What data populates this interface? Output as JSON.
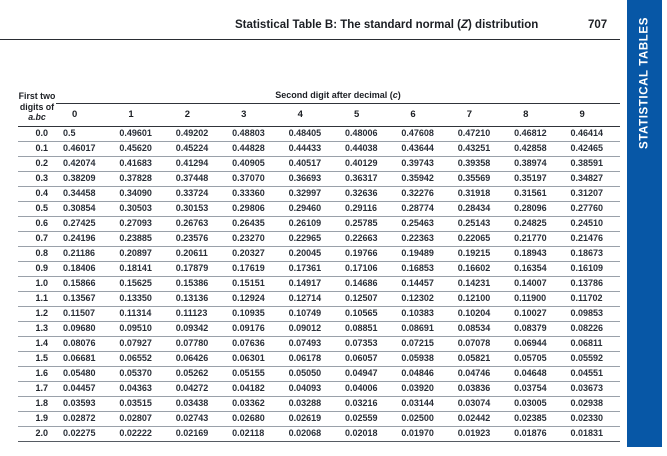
{
  "header": {
    "title_prefix": "Statistical Table B: The standard normal (",
    "title_z": "Z",
    "title_suffix": ") distribution",
    "page_number": "707"
  },
  "sidebar": {
    "label": "STATISTICAL TABLES",
    "color": "#0757a6"
  },
  "table": {
    "corner_header": {
      "line1": "First two",
      "line2": "digits of",
      "line3": "a.bc"
    },
    "span_header_prefix": "Second digit after decimal (",
    "span_header_c": "c",
    "span_header_suffix": ")",
    "col_headers": [
      "0",
      "1",
      "2",
      "3",
      "4",
      "5",
      "6",
      "7",
      "8",
      "9"
    ],
    "rows": [
      {
        "label": "0.0",
        "values": [
          "0.5",
          "0.49601",
          "0.49202",
          "0.48803",
          "0.48405",
          "0.48006",
          "0.47608",
          "0.47210",
          "0.46812",
          "0.46414"
        ]
      },
      {
        "label": "0.1",
        "values": [
          "0.46017",
          "0.45620",
          "0.45224",
          "0.44828",
          "0.44433",
          "0.44038",
          "0.43644",
          "0.43251",
          "0.42858",
          "0.42465"
        ]
      },
      {
        "label": "0.2",
        "values": [
          "0.42074",
          "0.41683",
          "0.41294",
          "0.40905",
          "0.40517",
          "0.40129",
          "0.39743",
          "0.39358",
          "0.38974",
          "0.38591"
        ]
      },
      {
        "label": "0.3",
        "values": [
          "0.38209",
          "0.37828",
          "0.37448",
          "0.37070",
          "0.36693",
          "0.36317",
          "0.35942",
          "0.35569",
          "0.35197",
          "0.34827"
        ]
      },
      {
        "label": "0.4",
        "values": [
          "0.34458",
          "0.34090",
          "0.33724",
          "0.33360",
          "0.32997",
          "0.32636",
          "0.32276",
          "0.31918",
          "0.31561",
          "0.31207"
        ]
      },
      {
        "label": "0.5",
        "values": [
          "0.30854",
          "0.30503",
          "0.30153",
          "0.29806",
          "0.29460",
          "0.29116",
          "0.28774",
          "0.28434",
          "0.28096",
          "0.27760"
        ]
      },
      {
        "label": "0.6",
        "values": [
          "0.27425",
          "0.27093",
          "0.26763",
          "0.26435",
          "0.26109",
          "0.25785",
          "0.25463",
          "0.25143",
          "0.24825",
          "0.24510"
        ]
      },
      {
        "label": "0.7",
        "values": [
          "0.24196",
          "0.23885",
          "0.23576",
          "0.23270",
          "0.22965",
          "0.22663",
          "0.22363",
          "0.22065",
          "0.21770",
          "0.21476"
        ]
      },
      {
        "label": "0.8",
        "values": [
          "0.21186",
          "0.20897",
          "0.20611",
          "0.20327",
          "0.20045",
          "0.19766",
          "0.19489",
          "0.19215",
          "0.18943",
          "0.18673"
        ]
      },
      {
        "label": "0.9",
        "values": [
          "0.18406",
          "0.18141",
          "0.17879",
          "0.17619",
          "0.17361",
          "0.17106",
          "0.16853",
          "0.16602",
          "0.16354",
          "0.16109"
        ]
      },
      {
        "label": "1.0",
        "values": [
          "0.15866",
          "0.15625",
          "0.15386",
          "0.15151",
          "0.14917",
          "0.14686",
          "0.14457",
          "0.14231",
          "0.14007",
          "0.13786"
        ]
      },
      {
        "label": "1.1",
        "values": [
          "0.13567",
          "0.13350",
          "0.13136",
          "0.12924",
          "0.12714",
          "0.12507",
          "0.12302",
          "0.12100",
          "0.11900",
          "0.11702"
        ]
      },
      {
        "label": "1.2",
        "values": [
          "0.11507",
          "0.11314",
          "0.11123",
          "0.10935",
          "0.10749",
          "0.10565",
          "0.10383",
          "0.10204",
          "0.10027",
          "0.09853"
        ]
      },
      {
        "label": "1.3",
        "values": [
          "0.09680",
          "0.09510",
          "0.09342",
          "0.09176",
          "0.09012",
          "0.08851",
          "0.08691",
          "0.08534",
          "0.08379",
          "0.08226"
        ]
      },
      {
        "label": "1.4",
        "values": [
          "0.08076",
          "0.07927",
          "0.07780",
          "0.07636",
          "0.07493",
          "0.07353",
          "0.07215",
          "0.07078",
          "0.06944",
          "0.06811"
        ]
      },
      {
        "label": "1.5",
        "values": [
          "0.06681",
          "0.06552",
          "0.06426",
          "0.06301",
          "0.06178",
          "0.06057",
          "0.05938",
          "0.05821",
          "0.05705",
          "0.05592"
        ]
      },
      {
        "label": "1.6",
        "values": [
          "0.05480",
          "0.05370",
          "0.05262",
          "0.05155",
          "0.05050",
          "0.04947",
          "0.04846",
          "0.04746",
          "0.04648",
          "0.04551"
        ]
      },
      {
        "label": "1.7",
        "values": [
          "0.04457",
          "0.04363",
          "0.04272",
          "0.04182",
          "0.04093",
          "0.04006",
          "0.03920",
          "0.03836",
          "0.03754",
          "0.03673"
        ]
      },
      {
        "label": "1.8",
        "values": [
          "0.03593",
          "0.03515",
          "0.03438",
          "0.03362",
          "0.03288",
          "0.03216",
          "0.03144",
          "0.03074",
          "0.03005",
          "0.02938"
        ]
      },
      {
        "label": "1.9",
        "values": [
          "0.02872",
          "0.02807",
          "0.02743",
          "0.02680",
          "0.02619",
          "0.02559",
          "0.02500",
          "0.02442",
          "0.02385",
          "0.02330"
        ]
      },
      {
        "label": "2.0",
        "values": [
          "0.02275",
          "0.02222",
          "0.02169",
          "0.02118",
          "0.02068",
          "0.02018",
          "0.01970",
          "0.01923",
          "0.01876",
          "0.01831"
        ]
      }
    ]
  }
}
